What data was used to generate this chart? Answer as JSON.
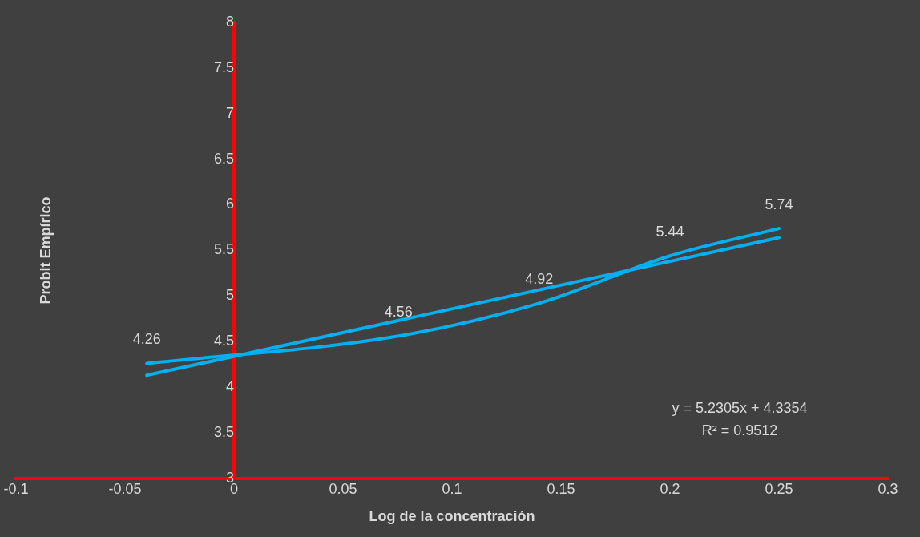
{
  "chart_data": {
    "type": "line",
    "xlabel": "Log de la concentración",
    "ylabel": "Probit Empírico",
    "xlim": [
      -0.1,
      0.3
    ],
    "xticks": [
      -0.1,
      -0.05,
      0,
      0.05,
      0.1,
      0.15,
      0.2,
      0.25,
      0.3
    ],
    "ylim": [
      3,
      8
    ],
    "yticks": [
      3,
      3.5,
      4,
      4.5,
      5,
      5.5,
      6,
      6.5,
      7,
      7.5,
      8
    ],
    "grid": false,
    "legend": false,
    "marker": "none",
    "series": [
      {
        "color": "#00b0f0",
        "x": [
          -0.04,
          0.0755,
          0.14,
          0.2,
          0.25
        ],
        "values": [
          4.26,
          4.56,
          4.92,
          5.44,
          5.74
        ],
        "value_labels": [
          "4.26",
          "4.56",
          "4.92",
          "5.44",
          "5.74"
        ]
      },
      {
        "type": "line",
        "color": "#00b0f0",
        "x": [
          -0.04,
          0.25
        ],
        "values": [
          4.13,
          5.64
        ]
      }
    ],
    "annotations": [
      "y = 5.2305x + 4.3354",
      "R² = 0.9512"
    ]
  }
}
